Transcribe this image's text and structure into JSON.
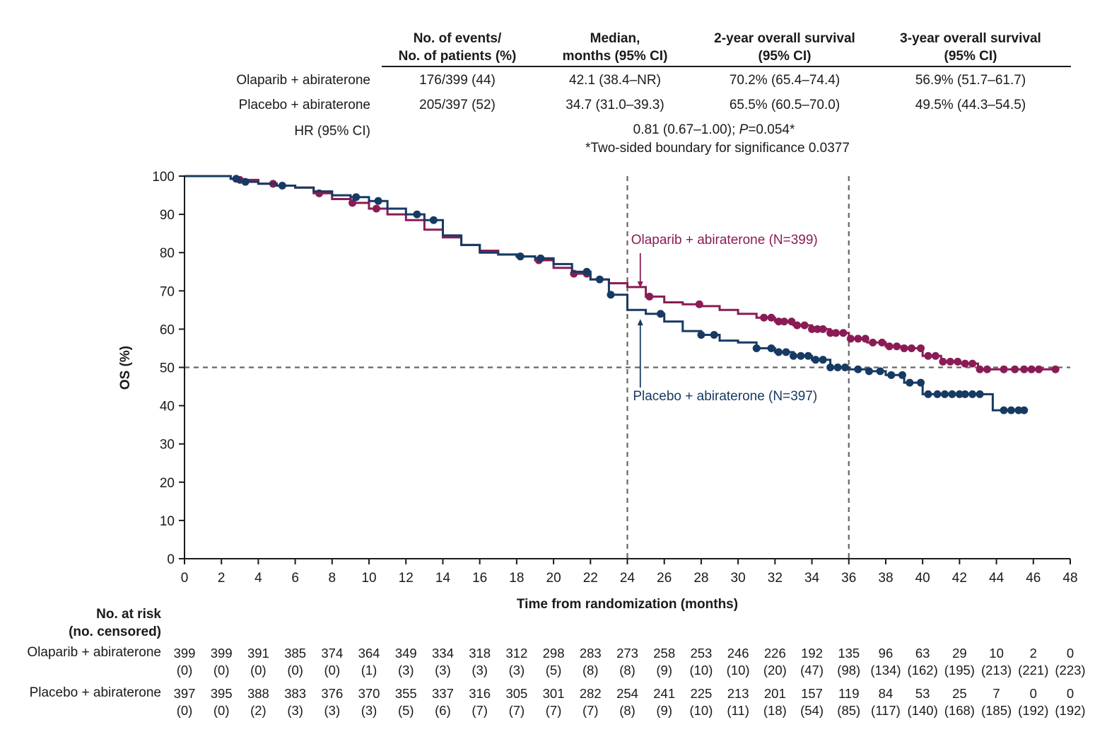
{
  "summary_table": {
    "headers": [
      {
        "line1": "No. of events/",
        "line2": "No. of patients (%)"
      },
      {
        "line1": "Median,",
        "line2": "months (95% CI)"
      },
      {
        "line1": "2-year overall survival",
        "line2": "(95% CI)"
      },
      {
        "line1": "3-year overall survival",
        "line2": "(95% CI)"
      }
    ],
    "rows": [
      {
        "label": "Olaparib + abiraterone",
        "cells": [
          "176/399 (44)",
          "42.1 (38.4–NR)",
          "70.2% (65.4–74.4)",
          "56.9% (51.7–61.7)"
        ]
      },
      {
        "label": "Placebo + abiraterone",
        "cells": [
          "205/397 (52)",
          "34.7 (31.0–39.3)",
          "65.5% (60.5–70.0)",
          "49.5% (44.3–54.5)"
        ]
      }
    ],
    "hr_label": "HR (95% CI)",
    "hr_value_prefix": "0.81 (0.67–1.00); ",
    "hr_p_letter": "P",
    "hr_p_value": "=0.054*",
    "footnote": "*Two-sided boundary for significance 0.0377"
  },
  "chart_data": {
    "type": "line",
    "subtype": "kaplan-meier",
    "xlabel": "Time from randomization (months)",
    "ylabel": "OS (%)",
    "xlim": [
      0,
      48
    ],
    "ylim": [
      0,
      100
    ],
    "xticks": [
      0,
      2,
      4,
      6,
      8,
      10,
      12,
      14,
      16,
      18,
      20,
      22,
      24,
      26,
      28,
      30,
      32,
      34,
      36,
      38,
      40,
      42,
      44,
      46,
      48
    ],
    "yticks": [
      0,
      10,
      20,
      30,
      40,
      50,
      60,
      70,
      80,
      90,
      100
    ],
    "reference_lines": {
      "horizontal_y": 50,
      "vertical_x": [
        24,
        36
      ]
    },
    "series": [
      {
        "name": "Olaparib + abiraterone (N=399)",
        "color": "#8a1c55",
        "x": [
          0,
          2,
          2.5,
          3,
          4,
          5,
          6,
          7,
          8,
          9,
          10,
          11,
          12,
          13,
          14,
          15,
          16,
          17,
          18,
          19,
          20,
          21,
          22,
          23,
          24,
          25,
          26,
          27,
          28,
          29,
          30,
          31,
          32,
          33,
          34,
          35,
          36,
          37,
          38,
          39,
          40,
          41,
          42,
          43,
          44,
          45,
          46,
          47.2
        ],
        "y": [
          100,
          100,
          99.3,
          99,
          98,
          97.5,
          97,
          95.5,
          94,
          93,
          91.5,
          90,
          88.5,
          86,
          84,
          82,
          80.5,
          79.5,
          79,
          78,
          76,
          74.5,
          73,
          72,
          71,
          68.5,
          67,
          66.5,
          66,
          65,
          64,
          63,
          62,
          61,
          60,
          59,
          57.5,
          56.5,
          55.5,
          55,
          53,
          51.5,
          51,
          49.5,
          49.5,
          49.5,
          49.5,
          49.5
        ],
        "censors_x": [
          3,
          4.8,
          7.3,
          9.1,
          10.4,
          18.2,
          19.2,
          21.1,
          21.8,
          25.2,
          27.9,
          31.4,
          31.8,
          32.2,
          32.5,
          32.9,
          33.2,
          33.6,
          34,
          34.3,
          34.6,
          35,
          35.3,
          35.7,
          36.1,
          36.5,
          36.9,
          37.3,
          37.8,
          38.2,
          38.6,
          39,
          39.4,
          39.9,
          40.3,
          40.7,
          41.1,
          41.5,
          41.9,
          42.3,
          42.7,
          43.1,
          43.5,
          44.4,
          45,
          45.5,
          45.9,
          46.3,
          47.2
        ]
      },
      {
        "name": "Placebo + abiraterone (N=397)",
        "color": "#173a63",
        "x": [
          0,
          2,
          2.5,
          3,
          4,
          5,
          6,
          7,
          8,
          9,
          10,
          11,
          12,
          13,
          14,
          15,
          16,
          17,
          18,
          19,
          20,
          21,
          22,
          23,
          24,
          25,
          26,
          27,
          28,
          29,
          30,
          31,
          32,
          33,
          34,
          35,
          36,
          37,
          38,
          39,
          40,
          41,
          42,
          43,
          43.8,
          45.5
        ],
        "y": [
          100,
          100,
          99.3,
          98.5,
          98,
          97.5,
          97,
          96,
          95,
          94.5,
          93.5,
          91.5,
          90,
          88.5,
          84.5,
          82,
          80,
          79.5,
          79,
          78.5,
          77,
          75,
          73,
          69,
          65,
          64,
          62,
          59.5,
          58.5,
          57,
          56.5,
          55,
          54,
          53,
          52,
          50,
          49.5,
          49,
          48,
          46,
          43,
          43,
          43,
          43,
          38.8,
          38.8
        ],
        "censors_x": [
          2.8,
          3.3,
          5.3,
          9.3,
          10.5,
          12.6,
          13.5,
          18.2,
          19.3,
          21.8,
          22.5,
          23.1,
          25.8,
          28,
          28.7,
          31,
          31.8,
          32.2,
          32.6,
          33,
          33.4,
          33.8,
          34.2,
          34.6,
          35,
          35.4,
          35.8,
          36.5,
          37.1,
          37.7,
          38.3,
          38.9,
          39.3,
          39.9,
          40.3,
          40.8,
          41.2,
          41.6,
          42,
          42.3,
          42.7,
          43.1,
          44.4,
          44.8,
          45.2,
          45.5
        ]
      }
    ],
    "annotations": [
      {
        "text": "Olaparib + abiraterone (N=399)",
        "series": 0
      },
      {
        "text": "Placebo + abiraterone (N=397)",
        "series": 1
      }
    ]
  },
  "risk_table": {
    "title_line1": "No. at risk",
    "title_line2": "(no. censored)",
    "times": [
      0,
      2,
      4,
      6,
      8,
      10,
      12,
      14,
      16,
      18,
      20,
      22,
      24,
      26,
      28,
      30,
      32,
      34,
      36,
      38,
      40,
      42,
      44,
      46,
      48
    ],
    "rows": [
      {
        "label": "Olaparib + abiraterone",
        "at_risk": [
          "399",
          "399",
          "391",
          "385",
          "374",
          "364",
          "349",
          "334",
          "318",
          "312",
          "298",
          "283",
          "273",
          "258",
          "253",
          "246",
          "226",
          "192",
          "135",
          "96",
          "63",
          "29",
          "10",
          "2",
          "0"
        ],
        "censored": [
          "(0)",
          "(0)",
          "(0)",
          "(0)",
          "(0)",
          "(1)",
          "(3)",
          "(3)",
          "(3)",
          "(3)",
          "(5)",
          "(8)",
          "(8)",
          "(9)",
          "(10)",
          "(10)",
          "(20)",
          "(47)",
          "(98)",
          "(134)",
          "(162)",
          "(195)",
          "(213)",
          "(221)",
          "(223)"
        ]
      },
      {
        "label": "Placebo + abiraterone",
        "at_risk": [
          "397",
          "395",
          "388",
          "383",
          "376",
          "370",
          "355",
          "337",
          "316",
          "305",
          "301",
          "282",
          "254",
          "241",
          "225",
          "213",
          "201",
          "157",
          "119",
          "84",
          "53",
          "25",
          "7",
          "0",
          "0"
        ],
        "censored": [
          "(0)",
          "(0)",
          "(2)",
          "(3)",
          "(3)",
          "(3)",
          "(5)",
          "(6)",
          "(7)",
          "(7)",
          "(7)",
          "(7)",
          "(8)",
          "(9)",
          "(10)",
          "(11)",
          "(18)",
          "(54)",
          "(85)",
          "(117)",
          "(140)",
          "(168)",
          "(185)",
          "(192)",
          "(192)"
        ]
      }
    ]
  }
}
